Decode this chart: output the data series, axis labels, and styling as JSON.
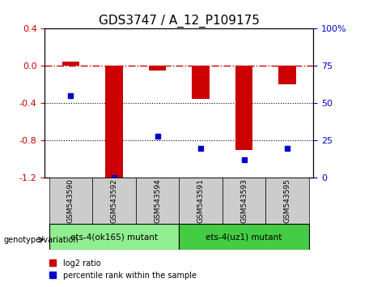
{
  "title": "GDS3747 / A_12_P109175",
  "samples": [
    "GSM543590",
    "GSM543592",
    "GSM543594",
    "GSM543591",
    "GSM543593",
    "GSM543595"
  ],
  "log2_ratio": [
    0.05,
    -1.2,
    -0.05,
    -0.35,
    -0.9,
    -0.2
  ],
  "percentile_rank": [
    55,
    0,
    28,
    20,
    12,
    20
  ],
  "ylim_left": [
    -1.2,
    0.4
  ],
  "ylim_right": [
    0,
    100
  ],
  "yticks_left": [
    -1.2,
    -0.8,
    -0.4,
    0.0,
    0.4
  ],
  "yticks_right": [
    0,
    25,
    50,
    75,
    100
  ],
  "bar_color": "#cc0000",
  "dot_color": "#0000cc",
  "hline_color": "#cc0000",
  "hline_style": "-.",
  "dotline_color": "#000000",
  "dotline_style": ":",
  "group1_label": "ets-4(ok165) mutant",
  "group2_label": "ets-4(uz1) mutant",
  "group1_indices": [
    0,
    1,
    2
  ],
  "group2_indices": [
    3,
    4,
    5
  ],
  "genotype_label": "genotype/variation",
  "legend_log2": "log2 ratio",
  "legend_pct": "percentile rank within the sample",
  "group1_color": "#90ee90",
  "group2_color": "#44cc44",
  "sample_box_color": "#cccccc",
  "title_fontsize": 11,
  "tick_fontsize": 8,
  "label_fontsize": 8
}
